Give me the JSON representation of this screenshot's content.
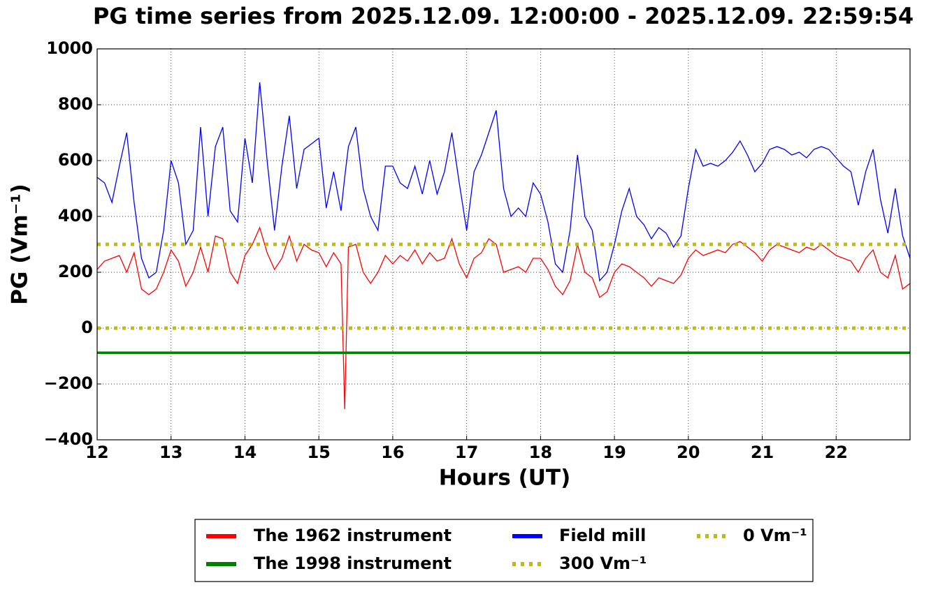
{
  "chart_data": {
    "type": "line",
    "title": "PG time series from 2025.12.09. 12:00:00 - 2025.12.09. 22:59:54",
    "x_label": "Hours (UT)",
    "y_label": "PG (Vm⁻¹)",
    "xlim": [
      12,
      23
    ],
    "ylim": [
      -400,
      1000
    ],
    "xticks": [
      12,
      13,
      14,
      15,
      16,
      17,
      18,
      19,
      20,
      21,
      22
    ],
    "yticks": [
      {
        "value": -400,
        "label": "−400"
      },
      {
        "value": -200,
        "label": "−200"
      },
      0,
      200,
      400,
      600,
      800,
      1000
    ],
    "grid": true,
    "legend": "bottom",
    "x": [
      12.0,
      12.1,
      12.2,
      12.3,
      12.4,
      12.5,
      12.6,
      12.7,
      12.8,
      12.9,
      13.0,
      13.1,
      13.2,
      13.3,
      13.4,
      13.5,
      13.6,
      13.7,
      13.8,
      13.9,
      14.0,
      14.1,
      14.2,
      14.3,
      14.4,
      14.5,
      14.6,
      14.7,
      14.8,
      14.9,
      15.0,
      15.1,
      15.2,
      15.3,
      15.35,
      15.4,
      15.5,
      15.6,
      15.7,
      15.8,
      15.9,
      16.0,
      16.1,
      16.2,
      16.3,
      16.4,
      16.5,
      16.6,
      16.7,
      16.8,
      16.9,
      17.0,
      17.1,
      17.2,
      17.3,
      17.4,
      17.5,
      17.6,
      17.7,
      17.8,
      17.9,
      18.0,
      18.1,
      18.2,
      18.3,
      18.4,
      18.5,
      18.6,
      18.7,
      18.8,
      18.9,
      19.0,
      19.1,
      19.2,
      19.3,
      19.4,
      19.5,
      19.6,
      19.7,
      19.8,
      19.9,
      20.0,
      20.1,
      20.2,
      20.3,
      20.4,
      20.5,
      20.6,
      20.7,
      20.8,
      20.9,
      21.0,
      21.1,
      21.2,
      21.3,
      21.4,
      21.5,
      21.6,
      21.7,
      21.8,
      21.9,
      22.0,
      22.1,
      22.2,
      22.3,
      22.4,
      22.5,
      22.6,
      22.7,
      22.8,
      22.9,
      23.0
    ],
    "series": [
      {
        "name": "The 1962 instrument",
        "color": "#ff0000",
        "style": "solid",
        "width": 1.3,
        "values": [
          210,
          240,
          250,
          260,
          200,
          270,
          140,
          120,
          140,
          200,
          280,
          240,
          150,
          200,
          290,
          200,
          330,
          320,
          200,
          160,
          260,
          300,
          360,
          270,
          210,
          250,
          330,
          240,
          300,
          280,
          270,
          220,
          270,
          230,
          -290,
          290,
          300,
          200,
          160,
          200,
          260,
          230,
          260,
          240,
          280,
          230,
          270,
          240,
          250,
          320,
          230,
          180,
          250,
          270,
          320,
          300,
          200,
          210,
          220,
          200,
          250,
          250,
          210,
          150,
          120,
          170,
          300,
          200,
          180,
          110,
          130,
          200,
          230,
          220,
          200,
          180,
          150,
          180,
          170,
          160,
          190,
          250,
          280,
          260,
          270,
          280,
          270,
          300,
          310,
          290,
          270,
          240,
          280,
          300,
          290,
          280,
          270,
          290,
          280,
          300,
          280,
          260,
          250,
          240,
          200,
          250,
          280,
          200,
          180,
          260,
          140,
          160
        ]
      },
      {
        "name": "The 1998 instrument",
        "color": "#008000",
        "style": "solid",
        "width": 3.5,
        "x": [
          12,
          23
        ],
        "values": [
          -88,
          -88
        ]
      },
      {
        "name": "Field mill",
        "color": "#0000ff",
        "style": "solid",
        "width": 1.3,
        "values": [
          540,
          520,
          450,
          580,
          700,
          450,
          250,
          180,
          200,
          350,
          600,
          520,
          300,
          350,
          720,
          400,
          650,
          720,
          420,
          380,
          680,
          520,
          880,
          600,
          350,
          580,
          760,
          500,
          640,
          660,
          680,
          430,
          560,
          420,
          540,
          650,
          720,
          500,
          400,
          350,
          580,
          580,
          520,
          500,
          580,
          480,
          600,
          480,
          560,
          700,
          520,
          350,
          560,
          620,
          700,
          780,
          500,
          400,
          430,
          400,
          520,
          480,
          380,
          230,
          200,
          350,
          620,
          400,
          350,
          170,
          200,
          300,
          420,
          500,
          400,
          370,
          320,
          360,
          340,
          290,
          330,
          500,
          640,
          580,
          590,
          580,
          600,
          630,
          670,
          620,
          560,
          590,
          640,
          650,
          640,
          620,
          630,
          610,
          640,
          650,
          640,
          610,
          580,
          560,
          440,
          560,
          640,
          460,
          340,
          500,
          330,
          250
        ]
      },
      {
        "name": "300 Vm⁻¹",
        "color": "#bfbf00",
        "style": "dotted",
        "width": 5,
        "x": [
          12,
          23
        ],
        "values": [
          300,
          300
        ]
      },
      {
        "name": "0 Vm⁻¹",
        "color": "#bfbf00",
        "style": "dotted",
        "width": 5,
        "x": [
          12,
          23
        ],
        "values": [
          0,
          0
        ]
      }
    ]
  }
}
